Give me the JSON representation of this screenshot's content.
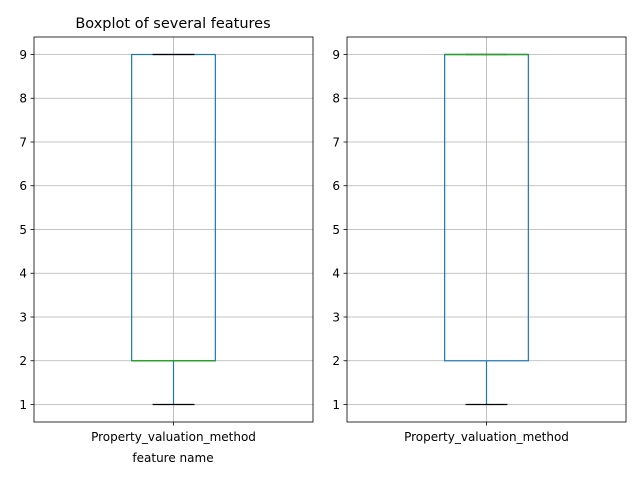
{
  "chart_data": [
    {
      "type": "boxplot",
      "title": "Boxplot of several features",
      "xlabel": "feature name",
      "ylabel": "",
      "categories": [
        "Property_valuation_method"
      ],
      "boxes": [
        {
          "category": "Property_valuation_method",
          "whisker_low": 1,
          "q1": 2,
          "median": 2,
          "q3": 9,
          "whisker_high": 9
        }
      ],
      "yticks": [
        1,
        2,
        3,
        4,
        5,
        6,
        7,
        8,
        9
      ],
      "ylim": [
        0.6,
        9.4
      ],
      "grid": true,
      "colors": {
        "box": "#1f77b4",
        "median": "#2ca02c",
        "whisker_cap": "#000000",
        "grid": "#b0b0b0"
      }
    },
    {
      "type": "boxplot",
      "title": "",
      "xlabel": "",
      "ylabel": "",
      "categories": [
        "Property_valuation_method"
      ],
      "boxes": [
        {
          "category": "Property_valuation_method",
          "whisker_low": 1,
          "q1": 2,
          "median": 9,
          "q3": 9,
          "whisker_high": 9
        }
      ],
      "yticks": [
        1,
        2,
        3,
        4,
        5,
        6,
        7,
        8,
        9
      ],
      "ylim": [
        0.6,
        9.4
      ],
      "grid": true,
      "colors": {
        "box": "#1f77b4",
        "median": "#2ca02c",
        "whisker_cap": "#000000",
        "grid": "#b0b0b0"
      }
    }
  ]
}
